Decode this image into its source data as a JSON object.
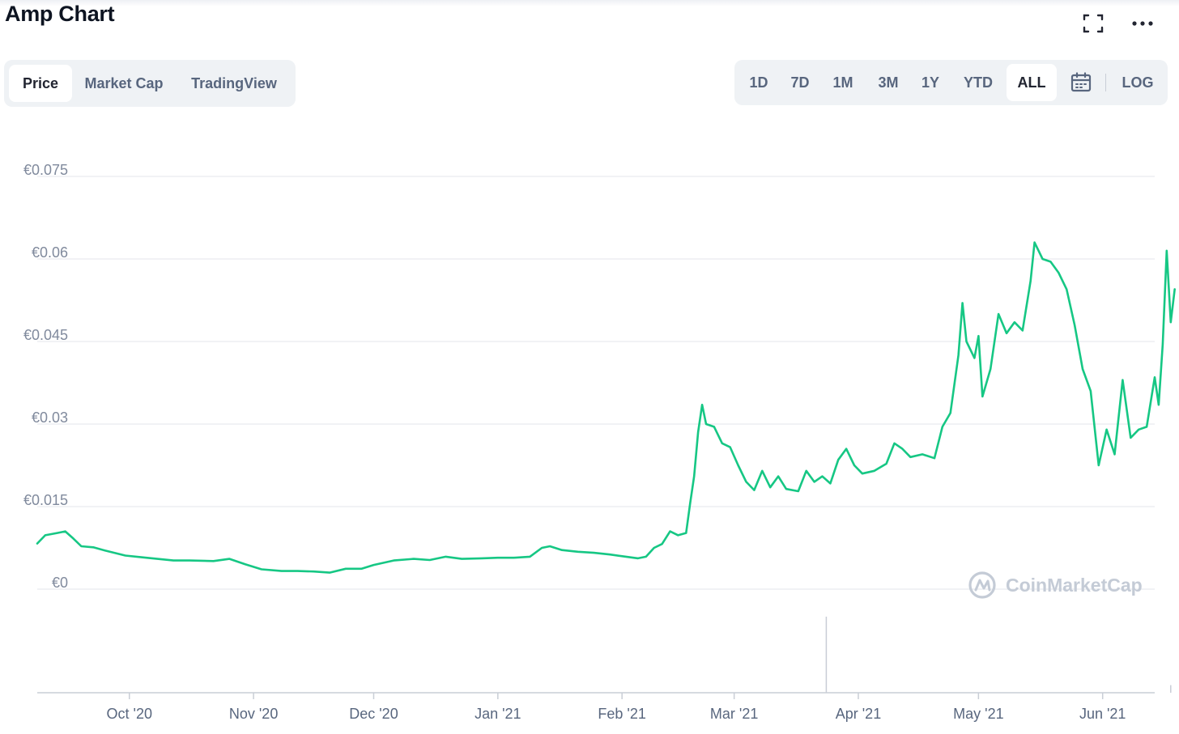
{
  "header": {
    "title": "Amp Chart",
    "expand_icon": "fullscreen-icon",
    "more_icon": "more-horizontal-icon"
  },
  "tabs": [
    {
      "label": "Price",
      "active": true
    },
    {
      "label": "Market Cap",
      "active": false
    },
    {
      "label": "TradingView",
      "active": false
    }
  ],
  "ranges": [
    {
      "label": "1D",
      "active": false
    },
    {
      "label": "7D",
      "active": false
    },
    {
      "label": "1M",
      "active": false
    },
    {
      "label": "3M",
      "active": false
    },
    {
      "label": "1Y",
      "active": false
    },
    {
      "label": "YTD",
      "active": false
    },
    {
      "label": "ALL",
      "active": true
    }
  ],
  "calendar_icon": "calendar-icon",
  "log_label": "LOG",
  "watermark": "CoinMarketCap",
  "chart_data": {
    "type": "line",
    "title": "",
    "xlabel": "",
    "ylabel": "",
    "line_color": "#16c784",
    "volume_color": "#c8ccd6",
    "grid": true,
    "ylim": [
      0,
      0.075
    ],
    "y_ticks": [
      "€0.075",
      "€0.06",
      "€0.045",
      "€0.03",
      "€0.015",
      "€0"
    ],
    "y_tick_values": [
      0.075,
      0.06,
      0.045,
      0.03,
      0.015,
      0
    ],
    "x_range": [
      "2020-09-08",
      "2021-06-14"
    ],
    "x_ticks": [
      {
        "label": "Oct '20",
        "date": "2020-10-01"
      },
      {
        "label": "Nov '20",
        "date": "2020-11-01"
      },
      {
        "label": "Dec '20",
        "date": "2020-12-01"
      },
      {
        "label": "Jan '21",
        "date": "2021-01-01"
      },
      {
        "label": "Feb '21",
        "date": "2021-02-01"
      },
      {
        "label": "Mar '21",
        "date": "2021-03-01"
      },
      {
        "label": "Apr '21",
        "date": "2021-04-01"
      },
      {
        "label": "May '21",
        "date": "2021-05-01"
      },
      {
        "label": "Jun '21",
        "date": "2021-06-01"
      }
    ],
    "series": [
      {
        "points": [
          [
            "2020-09-08",
            0.0083
          ],
          [
            "2020-09-10",
            0.0098
          ],
          [
            "2020-09-13",
            0.0102
          ],
          [
            "2020-09-15",
            0.0105
          ],
          [
            "2020-09-17",
            0.0092
          ],
          [
            "2020-09-19",
            0.0078
          ],
          [
            "2020-09-22",
            0.0076
          ],
          [
            "2020-09-25",
            0.007
          ],
          [
            "2020-09-30",
            0.0061
          ],
          [
            "2020-10-04",
            0.0058
          ],
          [
            "2020-10-08",
            0.0055
          ],
          [
            "2020-10-12",
            0.0052
          ],
          [
            "2020-10-16",
            0.0052
          ],
          [
            "2020-10-22",
            0.0051
          ],
          [
            "2020-10-26",
            0.0055
          ],
          [
            "2020-10-30",
            0.0045
          ],
          [
            "2020-11-03",
            0.0036
          ],
          [
            "2020-11-08",
            0.0033
          ],
          [
            "2020-11-12",
            0.0033
          ],
          [
            "2020-11-16",
            0.0032
          ],
          [
            "2020-11-20",
            0.003
          ],
          [
            "2020-11-24",
            0.0037
          ],
          [
            "2020-11-28",
            0.0037
          ],
          [
            "2020-12-01",
            0.0044
          ],
          [
            "2020-12-06",
            0.0052
          ],
          [
            "2020-12-11",
            0.0055
          ],
          [
            "2020-12-15",
            0.0053
          ],
          [
            "2020-12-19",
            0.0059
          ],
          [
            "2020-12-23",
            0.0055
          ],
          [
            "2020-12-28",
            0.0056
          ],
          [
            "2021-01-01",
            0.0057
          ],
          [
            "2021-01-05",
            0.0057
          ],
          [
            "2021-01-09",
            0.0059
          ],
          [
            "2021-01-12",
            0.0075
          ],
          [
            "2021-01-14",
            0.0078
          ],
          [
            "2021-01-17",
            0.0071
          ],
          [
            "2021-01-21",
            0.0068
          ],
          [
            "2021-01-25",
            0.0066
          ],
          [
            "2021-01-29",
            0.0063
          ],
          [
            "2021-02-02",
            0.0059
          ],
          [
            "2021-02-05",
            0.0056
          ],
          [
            "2021-02-07",
            0.0059
          ],
          [
            "2021-02-09",
            0.0075
          ],
          [
            "2021-02-11",
            0.0082
          ],
          [
            "2021-02-13",
            0.0105
          ],
          [
            "2021-02-15",
            0.0098
          ],
          [
            "2021-02-17",
            0.0102
          ],
          [
            "2021-02-18",
            0.0155
          ],
          [
            "2021-02-19",
            0.0205
          ],
          [
            "2021-02-20",
            0.0285
          ],
          [
            "2021-02-21",
            0.0335
          ],
          [
            "2021-02-22",
            0.03
          ],
          [
            "2021-02-24",
            0.0295
          ],
          [
            "2021-02-26",
            0.0265
          ],
          [
            "2021-02-28",
            0.0258
          ],
          [
            "2021-03-02",
            0.0225
          ],
          [
            "2021-03-04",
            0.0195
          ],
          [
            "2021-03-06",
            0.018
          ],
          [
            "2021-03-08",
            0.0215
          ],
          [
            "2021-03-10",
            0.0185
          ],
          [
            "2021-03-12",
            0.0205
          ],
          [
            "2021-03-14",
            0.0182
          ],
          [
            "2021-03-17",
            0.0178
          ],
          [
            "2021-03-19",
            0.0215
          ],
          [
            "2021-03-21",
            0.0195
          ],
          [
            "2021-03-23",
            0.0205
          ],
          [
            "2021-03-25",
            0.0192
          ],
          [
            "2021-03-27",
            0.0235
          ],
          [
            "2021-03-29",
            0.0255
          ],
          [
            "2021-03-31",
            0.0225
          ],
          [
            "2021-04-02",
            0.021
          ],
          [
            "2021-04-05",
            0.0215
          ],
          [
            "2021-04-08",
            0.0228
          ],
          [
            "2021-04-10",
            0.0265
          ],
          [
            "2021-04-12",
            0.0255
          ],
          [
            "2021-04-14",
            0.024
          ],
          [
            "2021-04-17",
            0.0245
          ],
          [
            "2021-04-20",
            0.0238
          ],
          [
            "2021-04-22",
            0.0295
          ],
          [
            "2021-04-24",
            0.032
          ],
          [
            "2021-04-26",
            0.0425
          ],
          [
            "2021-04-27",
            0.052
          ],
          [
            "2021-04-28",
            0.045
          ],
          [
            "2021-04-30",
            0.042
          ],
          [
            "2021-05-01",
            0.046
          ],
          [
            "2021-05-02",
            0.035
          ],
          [
            "2021-05-04",
            0.04
          ],
          [
            "2021-05-06",
            0.05
          ],
          [
            "2021-05-08",
            0.0465
          ],
          [
            "2021-05-10",
            0.0485
          ],
          [
            "2021-05-12",
            0.047
          ],
          [
            "2021-05-14",
            0.056
          ],
          [
            "2021-05-15",
            0.063
          ],
          [
            "2021-05-17",
            0.06
          ],
          [
            "2021-05-19",
            0.0595
          ],
          [
            "2021-05-21",
            0.0575
          ],
          [
            "2021-05-23",
            0.0545
          ],
          [
            "2021-05-25",
            0.048
          ],
          [
            "2021-05-27",
            0.04
          ],
          [
            "2021-05-29",
            0.036
          ],
          [
            "2021-05-31",
            0.0225
          ],
          [
            "2021-06-02",
            0.029
          ],
          [
            "2021-06-04",
            0.0245
          ],
          [
            "2021-06-06",
            0.038
          ],
          [
            "2021-06-08",
            0.0275
          ],
          [
            "2021-06-10",
            0.029
          ],
          [
            "2021-06-12",
            0.0295
          ],
          [
            "2021-06-14",
            0.0385
          ],
          [
            "2021-06-15",
            0.0335
          ],
          [
            "2021-06-16",
            0.0445
          ],
          [
            "2021-06-17",
            0.0615
          ],
          [
            "2021-06-18",
            0.0485
          ],
          [
            "2021-06-19",
            0.0545
          ]
        ]
      }
    ],
    "volume": [
      [
        "2021-03-24",
        1.0
      ],
      [
        "2021-06-18",
        0.1
      ]
    ]
  }
}
